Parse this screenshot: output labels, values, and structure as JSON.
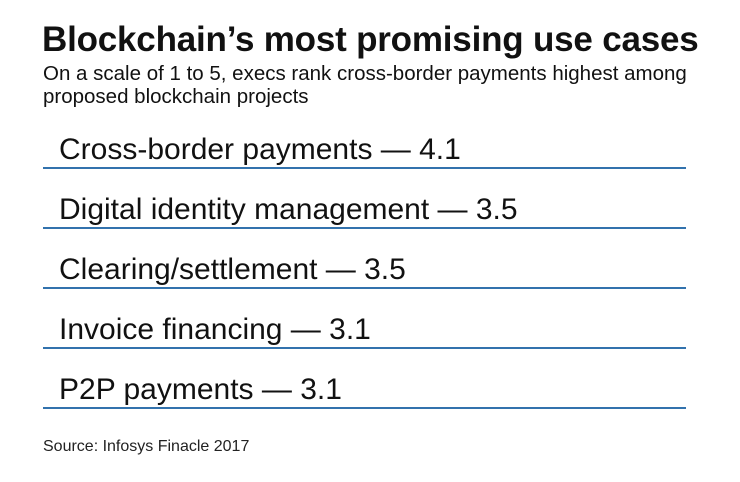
{
  "header": {
    "title": "Blockchain’s most promising use cases",
    "subtitle": "On a scale of 1 to 5, execs rank cross-border payments highest among proposed blockchain projects"
  },
  "rows": [
    {
      "label": "Cross-border payments — 4.1"
    },
    {
      "label": "Digital identity management — 3.5"
    },
    {
      "label": "Clearing/settlement — 3.5"
    },
    {
      "label": "Invoice financing — 3.1"
    },
    {
      "label": "P2P payments — 3.1"
    }
  ],
  "footer": {
    "source": "Source: Infosys Finacle 2017"
  },
  "colors": {
    "divider": "#3272ad",
    "text": "#111111"
  },
  "chart_data": {
    "type": "table",
    "title": "Blockchain’s most promising use cases",
    "subtitle": "On a scale of 1 to 5, execs rank cross-border payments highest among proposed blockchain projects",
    "categories": [
      "Cross-border payments",
      "Digital identity management",
      "Clearing/settlement",
      "Invoice financing",
      "P2P payments"
    ],
    "values": [
      4.1,
      3.5,
      3.5,
      3.1,
      3.1
    ],
    "scale": [
      1,
      5
    ],
    "xlabel": "",
    "ylabel": "",
    "source": "Source: Infosys Finacle 2017"
  }
}
